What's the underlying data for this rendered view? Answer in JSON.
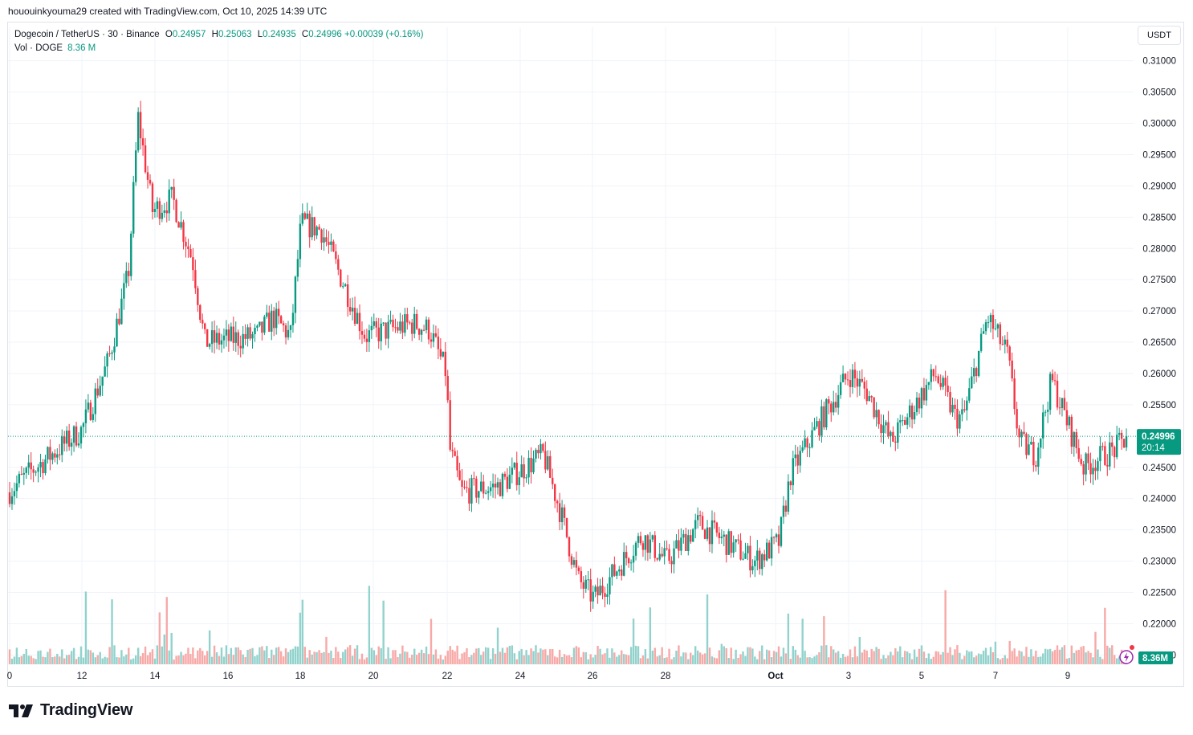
{
  "attribution": "hououinkyouma29 created with TradingView.com, Oct 10, 2025 14:39 UTC",
  "legend": {
    "symbol": "Dogecoin / TetherUS · 30 · Binance",
    "open_label": "O",
    "open": "0.24957",
    "high_label": "H",
    "high": "0.25063",
    "low_label": "L",
    "low": "0.24935",
    "close_label": "C",
    "close": "0.24996",
    "change": "+0.00039 (+0.16%)",
    "vol_label": "Vol · DOGE",
    "vol_value": "8.36 M"
  },
  "currency_button": "USDT",
  "price_badge": {
    "price": "0.24996",
    "countdown": "20:14"
  },
  "volume_badge": "8.36M",
  "brand": "TradingView",
  "colors": {
    "up": "#089981",
    "down": "#f23645",
    "grid": "#f0f3fa",
    "text": "#131722",
    "vol_up": "#92d2cc",
    "vol_down": "#f7a9a7"
  },
  "chart_data": {
    "type": "candlestick",
    "pair": "DOGE/USDT",
    "interval": "30",
    "exchange": "Binance",
    "y_ticks": [
      "0.31000",
      "0.30500",
      "0.30000",
      "0.29500",
      "0.29000",
      "0.28500",
      "0.28000",
      "0.27500",
      "0.27000",
      "0.26500",
      "0.26000",
      "0.25500",
      "0.24500",
      "0.24000",
      "0.23500",
      "0.23000",
      "0.22500",
      "0.22000",
      "0.21500"
    ],
    "x_ticks": [
      "0",
      "12",
      "14",
      "16",
      "18",
      "20",
      "22",
      "24",
      "26",
      "28",
      "Oct",
      "3",
      "5",
      "7",
      "9"
    ],
    "ylim": [
      0.2135,
      0.3115
    ],
    "last_price": 0.24996,
    "price_path": {
      "x": [
        "Sep 10",
        "Sep 11",
        "Sep 12",
        "Sep 13",
        "Sep 13 12h",
        "Sep 14",
        "Sep 14 12h",
        "Sep 15",
        "Sep 15 12h",
        "Sep 16",
        "Sep 17",
        "Sep 17 12h",
        "Sep 18",
        "Sep 18 12h",
        "Sep 19",
        "Sep 20",
        "Sep 21",
        "Sep 21 12h",
        "Sep 22",
        "Sep 22 6h",
        "Sep 23",
        "Sep 24",
        "Sep 24 12h",
        "Sep 25",
        "Sep 25 12h",
        "Sep 26",
        "Sep 27",
        "Sep 28",
        "Sep 29",
        "Sep 30",
        "Oct 1",
        "Oct 1 12h",
        "Oct 2",
        "Oct 3",
        "Oct 4",
        "Oct 4 12h",
        "Oct 5",
        "Oct 5 12h",
        "Oct 6",
        "Oct 6 12h",
        "Oct 7",
        "Oct 7 12h",
        "Oct 8",
        "Oct 8 12h",
        "Oct 9",
        "Oct 9 12h",
        "Oct 10"
      ],
      "y": [
        0.241,
        0.2445,
        0.251,
        0.262,
        0.276,
        0.301,
        0.286,
        0.288,
        0.278,
        0.265,
        0.266,
        0.269,
        0.266,
        0.284,
        0.283,
        0.266,
        0.268,
        0.267,
        0.26,
        0.248,
        0.241,
        0.242,
        0.247,
        0.237,
        0.227,
        0.224,
        0.234,
        0.23,
        0.236,
        0.23,
        0.233,
        0.244,
        0.252,
        0.26,
        0.257,
        0.249,
        0.26,
        0.253,
        0.253,
        0.269,
        0.263,
        0.249,
        0.247,
        0.259,
        0.245,
        0.248,
        0.25
      ]
    },
    "high": 0.307,
    "low": 0.2205,
    "volume_last": "8.36M"
  }
}
